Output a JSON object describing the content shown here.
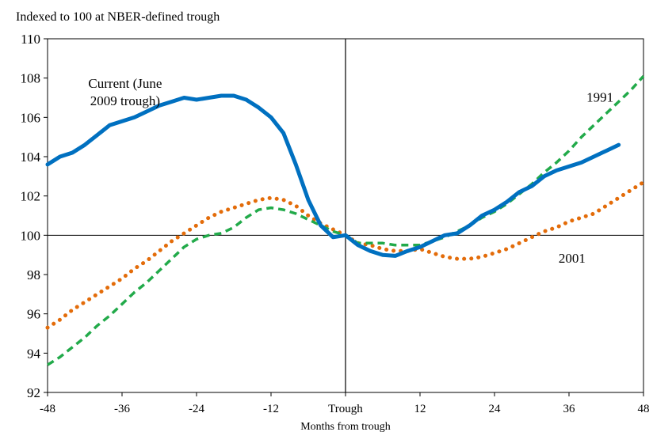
{
  "chart_data": {
    "type": "line",
    "title": "",
    "subtitle": "Indexed to 100 at NBER-defined trough",
    "xlabel": "Months from trough",
    "ylabel": "",
    "xlim": [
      -48,
      48
    ],
    "ylim": [
      92,
      110
    ],
    "x_ticks": [
      {
        "value": -48,
        "label": "-48"
      },
      {
        "value": -36,
        "label": "-36"
      },
      {
        "value": -24,
        "label": "-24"
      },
      {
        "value": -12,
        "label": "-12"
      },
      {
        "value": 0,
        "label": "Trough"
      },
      {
        "value": 12,
        "label": "12"
      },
      {
        "value": 24,
        "label": "24"
      },
      {
        "value": 36,
        "label": "36"
      },
      {
        "value": 48,
        "label": "48"
      }
    ],
    "y_ticks": [
      92,
      94,
      96,
      98,
      100,
      102,
      104,
      106,
      108,
      110
    ],
    "reference_line_y": 100,
    "reference_line_x": 0,
    "series": [
      {
        "name": "Current (June 2009 trough)",
        "label_lines": [
          "Current (June",
          "2009 trough)"
        ],
        "label_at": [
          -35.5,
          107.5
        ],
        "color": "#0070c0",
        "style": "solid",
        "x": [
          -48,
          -46,
          -44,
          -42,
          -40,
          -38,
          -36,
          -34,
          -32,
          -30,
          -28,
          -26,
          -24,
          -22,
          -20,
          -18,
          -16,
          -14,
          -12,
          -10,
          -8,
          -6,
          -4,
          -2,
          0,
          2,
          4,
          6,
          8,
          10,
          12,
          14,
          16,
          18,
          20,
          22,
          24,
          26,
          28,
          30,
          32,
          34,
          36,
          38,
          40,
          42,
          44
        ],
        "values": [
          103.6,
          104.0,
          104.2,
          104.6,
          105.1,
          105.6,
          105.8,
          106.0,
          106.3,
          106.6,
          106.8,
          107.0,
          106.9,
          107.0,
          107.1,
          107.1,
          106.9,
          106.5,
          106.0,
          105.2,
          103.6,
          101.8,
          100.5,
          99.9,
          100.0,
          99.5,
          99.2,
          99.0,
          98.95,
          99.2,
          99.4,
          99.7,
          100.0,
          100.1,
          100.5,
          101.0,
          101.3,
          101.7,
          102.2,
          102.5,
          103.0,
          103.3,
          103.5,
          103.7,
          104.0,
          104.3,
          104.6
        ]
      },
      {
        "name": "1991",
        "label_lines": [
          "1991"
        ],
        "label_at": [
          41,
          106.8
        ],
        "color": "#22aa4a",
        "style": "dashed",
        "x": [
          -48,
          -46,
          -44,
          -42,
          -40,
          -38,
          -36,
          -34,
          -32,
          -30,
          -28,
          -26,
          -24,
          -22,
          -20,
          -18,
          -16,
          -14,
          -12,
          -10,
          -8,
          -6,
          -4,
          -2,
          0,
          2,
          4,
          6,
          8,
          10,
          12,
          14,
          16,
          18,
          20,
          22,
          24,
          26,
          28,
          30,
          32,
          34,
          36,
          38,
          40,
          42,
          44,
          46,
          48
        ],
        "values": [
          93.4,
          93.8,
          94.3,
          94.8,
          95.4,
          95.9,
          96.5,
          97.1,
          97.6,
          98.2,
          98.8,
          99.4,
          99.8,
          100.0,
          100.1,
          100.4,
          100.9,
          101.3,
          101.4,
          101.3,
          101.1,
          100.8,
          100.5,
          100.2,
          100.0,
          99.6,
          99.6,
          99.6,
          99.5,
          99.5,
          99.5,
          99.7,
          99.9,
          100.2,
          100.5,
          100.9,
          101.2,
          101.6,
          102.1,
          102.6,
          103.2,
          103.7,
          104.3,
          105.0,
          105.6,
          106.2,
          106.8,
          107.4,
          108.1
        ]
      },
      {
        "name": "2001",
        "label_lines": [
          "2001"
        ],
        "label_at": [
          36.5,
          98.6
        ],
        "color": "#e36c0a",
        "style": "dotted",
        "x": [
          -48,
          -46,
          -44,
          -42,
          -40,
          -38,
          -36,
          -34,
          -32,
          -30,
          -28,
          -26,
          -24,
          -22,
          -20,
          -18,
          -16,
          -14,
          -12,
          -10,
          -8,
          -6,
          -4,
          -2,
          0,
          2,
          4,
          6,
          8,
          10,
          12,
          14,
          16,
          18,
          20,
          22,
          24,
          26,
          28,
          30,
          32,
          34,
          36,
          38,
          40,
          42,
          44,
          46,
          48
        ],
        "values": [
          95.3,
          95.7,
          96.2,
          96.6,
          97.0,
          97.4,
          97.8,
          98.3,
          98.7,
          99.2,
          99.7,
          100.1,
          100.5,
          100.9,
          101.2,
          101.4,
          101.6,
          101.8,
          101.9,
          101.8,
          101.5,
          101.0,
          100.6,
          100.3,
          100.0,
          99.6,
          99.5,
          99.3,
          99.2,
          99.2,
          99.3,
          99.1,
          98.9,
          98.8,
          98.8,
          98.9,
          99.1,
          99.3,
          99.6,
          99.9,
          100.2,
          100.4,
          100.7,
          100.9,
          101.1,
          101.5,
          101.9,
          102.3,
          102.7
        ]
      }
    ],
    "grid": false,
    "legend": "none"
  }
}
